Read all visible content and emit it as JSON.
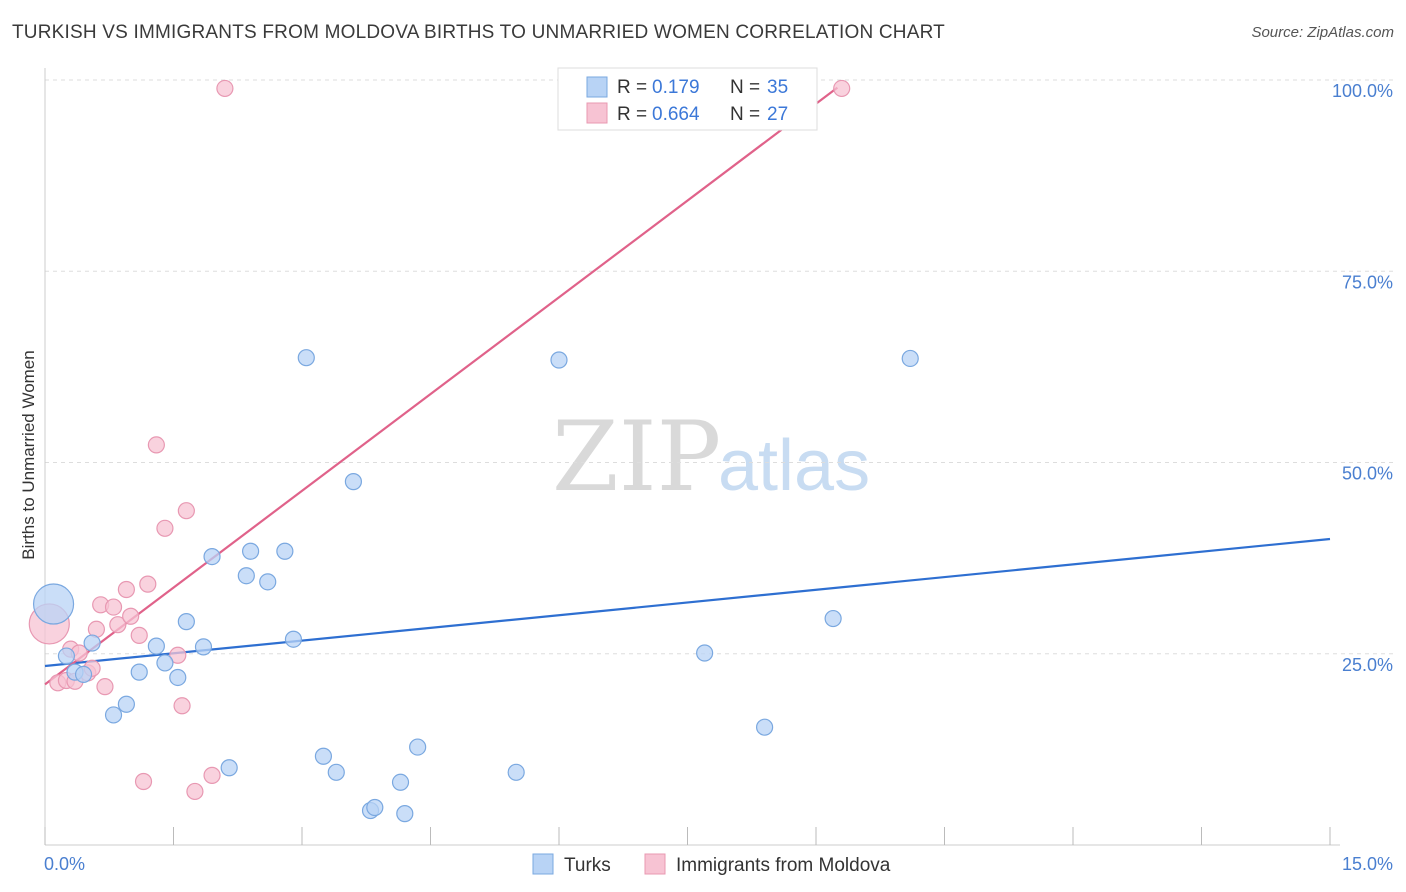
{
  "title": "TURKISH VS IMMIGRANTS FROM MOLDOVA BIRTHS TO UNMARRIED WOMEN CORRELATION CHART",
  "source": "Source: ZipAtlas.com",
  "watermark": {
    "zip": "ZIP",
    "atlas": "atlas"
  },
  "colors": {
    "turks_fill": "#b8d3f5",
    "turks_stroke": "#7aa8e0",
    "turks_line": "#2e6fd1",
    "moldova_fill": "#f7c3d3",
    "moldova_stroke": "#e898b2",
    "moldova_line": "#e0628a",
    "grid": "#dddddd",
    "tick_text": "#4a7fd0"
  },
  "legend_top": {
    "rows": [
      {
        "r_label": "R =",
        "r_value": "0.179",
        "n_label": "N =",
        "n_value": "35"
      },
      {
        "r_label": "R =",
        "r_value": "0.664",
        "n_label": "N =",
        "n_value": "27"
      }
    ]
  },
  "legend_bottom": {
    "turks": "Turks",
    "moldova": "Immigrants from Moldova"
  },
  "chart_data": {
    "type": "scatter",
    "title": "TURKISH VS IMMIGRANTS FROM MOLDOVA BIRTHS TO UNMARRIED WOMEN CORRELATION CHART",
    "xlabel": "",
    "ylabel": "Births to Unmarried Women",
    "xlim": [
      0,
      15
    ],
    "ylim": [
      0,
      100
    ],
    "x_tick_labels": [
      "0.0%",
      "15.0%"
    ],
    "y_ticks": [
      25,
      50,
      75,
      100
    ],
    "y_tick_labels": [
      "25.0%",
      "50.0%",
      "75.0%",
      "100.0%"
    ],
    "grid": true,
    "legend_position": "top-center",
    "series": [
      {
        "name": "Turks",
        "r": 0.179,
        "n": 35,
        "trend": {
          "x": [
            0,
            15
          ],
          "y": [
            23.4,
            40.0
          ]
        },
        "points": [
          {
            "x": 0.1,
            "y": 31.5,
            "big": true
          },
          {
            "x": 0.25,
            "y": 24.7
          },
          {
            "x": 0.35,
            "y": 22.6
          },
          {
            "x": 0.45,
            "y": 22.3
          },
          {
            "x": 0.55,
            "y": 26.4
          },
          {
            "x": 0.8,
            "y": 17.0
          },
          {
            "x": 0.95,
            "y": 18.4
          },
          {
            "x": 1.1,
            "y": 22.6
          },
          {
            "x": 1.3,
            "y": 26.0
          },
          {
            "x": 1.4,
            "y": 23.8
          },
          {
            "x": 1.55,
            "y": 21.9
          },
          {
            "x": 1.65,
            "y": 29.2
          },
          {
            "x": 1.85,
            "y": 25.9
          },
          {
            "x": 1.95,
            "y": 37.7
          },
          {
            "x": 2.15,
            "y": 10.1
          },
          {
            "x": 2.35,
            "y": 35.2
          },
          {
            "x": 2.4,
            "y": 38.4
          },
          {
            "x": 2.6,
            "y": 34.4
          },
          {
            "x": 2.8,
            "y": 38.4
          },
          {
            "x": 2.9,
            "y": 26.9
          },
          {
            "x": 3.05,
            "y": 63.7
          },
          {
            "x": 3.25,
            "y": 11.6
          },
          {
            "x": 3.4,
            "y": 9.5
          },
          {
            "x": 3.6,
            "y": 47.5
          },
          {
            "x": 3.8,
            "y": 4.5
          },
          {
            "x": 3.85,
            "y": 4.9
          },
          {
            "x": 4.15,
            "y": 8.2
          },
          {
            "x": 4.2,
            "y": 4.1
          },
          {
            "x": 4.35,
            "y": 12.8
          },
          {
            "x": 5.5,
            "y": 9.5
          },
          {
            "x": 6.0,
            "y": 63.4
          },
          {
            "x": 7.7,
            "y": 25.1
          },
          {
            "x": 8.4,
            "y": 15.4
          },
          {
            "x": 9.2,
            "y": 29.6
          },
          {
            "x": 10.1,
            "y": 63.6
          }
        ]
      },
      {
        "name": "Immigrants from Moldova",
        "r": 0.664,
        "n": 27,
        "trend": {
          "x": [
            0,
            9.25
          ],
          "y": [
            21.0,
            99.0
          ]
        },
        "points": [
          {
            "x": 0.05,
            "y": 28.9,
            "big": true
          },
          {
            "x": 0.15,
            "y": 21.2
          },
          {
            "x": 0.25,
            "y": 21.5
          },
          {
            "x": 0.3,
            "y": 25.6
          },
          {
            "x": 0.35,
            "y": 21.4
          },
          {
            "x": 0.4,
            "y": 25.1
          },
          {
            "x": 0.5,
            "y": 22.5
          },
          {
            "x": 0.55,
            "y": 23.1
          },
          {
            "x": 0.6,
            "y": 28.2
          },
          {
            "x": 0.65,
            "y": 31.4
          },
          {
            "x": 0.7,
            "y": 20.7
          },
          {
            "x": 0.8,
            "y": 31.1
          },
          {
            "x": 0.85,
            "y": 28.8
          },
          {
            "x": 0.95,
            "y": 33.4
          },
          {
            "x": 1.0,
            "y": 29.9
          },
          {
            "x": 1.1,
            "y": 27.4
          },
          {
            "x": 1.15,
            "y": 8.3
          },
          {
            "x": 1.2,
            "y": 34.1
          },
          {
            "x": 1.3,
            "y": 52.3
          },
          {
            "x": 1.4,
            "y": 41.4
          },
          {
            "x": 1.55,
            "y": 24.8
          },
          {
            "x": 1.6,
            "y": 18.2
          },
          {
            "x": 1.65,
            "y": 43.7
          },
          {
            "x": 1.75,
            "y": 7.0
          },
          {
            "x": 1.95,
            "y": 9.1
          },
          {
            "x": 2.1,
            "y": 98.9
          },
          {
            "x": 9.3,
            "y": 98.9
          }
        ]
      }
    ]
  }
}
